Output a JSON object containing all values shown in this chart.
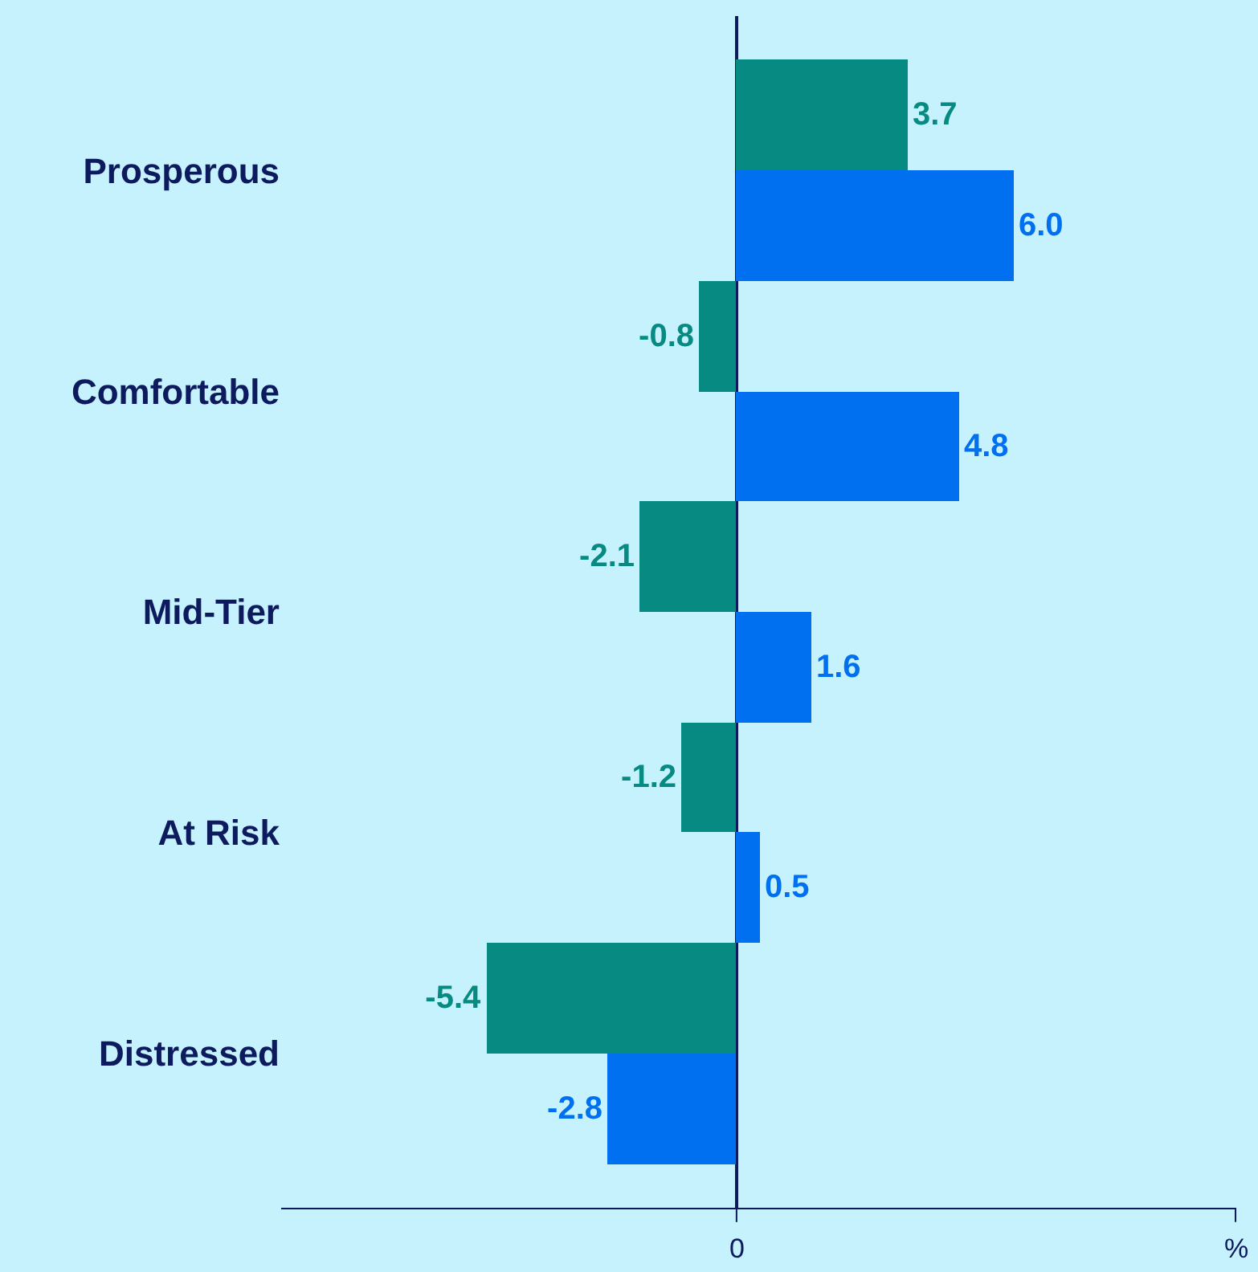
{
  "chart_data": {
    "type": "bar",
    "orientation": "horizontal",
    "categories": [
      "Prosperous",
      "Comfortable",
      "Mid-Tier",
      "At Risk",
      "Distressed"
    ],
    "series": [
      {
        "color": "#078a82",
        "values": [
          3.7,
          -0.8,
          -2.1,
          -1.2,
          -5.4
        ],
        "value_labels": [
          "3.7",
          "-0.8",
          "-2.1",
          "-1.2",
          "-5.4"
        ]
      },
      {
        "color": "#0070f0",
        "values": [
          6.0,
          4.8,
          1.6,
          0.5,
          -2.8
        ],
        "value_labels": [
          "6.0",
          "4.8",
          "1.6",
          "0.5",
          "-2.8"
        ]
      }
    ],
    "annotations": [
      "0",
      "%"
    ]
  }
}
